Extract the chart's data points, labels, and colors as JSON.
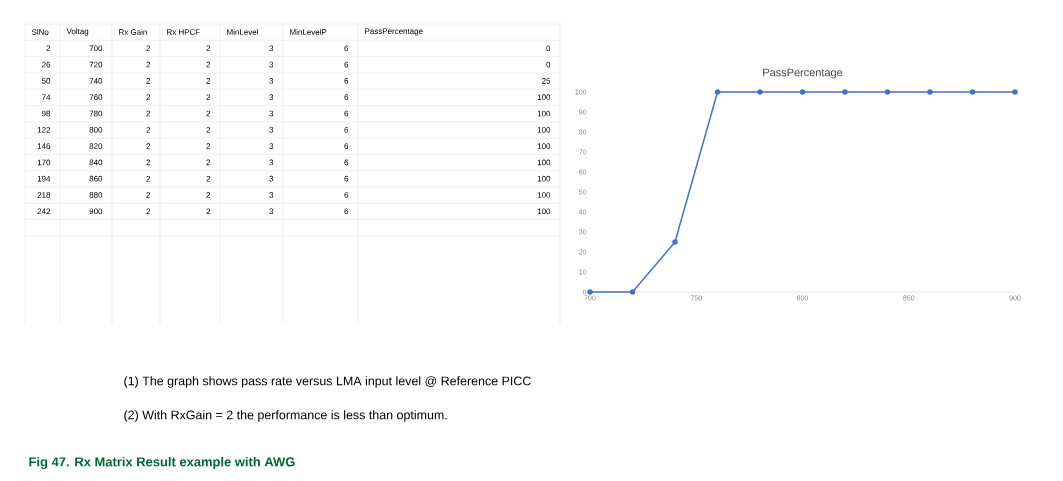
{
  "chart_data": {
    "type": "line",
    "title": "PassPercentage",
    "x": [
      700,
      720,
      740,
      760,
      780,
      800,
      820,
      840,
      860,
      880,
      900
    ],
    "values": [
      0,
      0,
      25,
      100,
      100,
      100,
      100,
      100,
      100,
      100,
      100
    ],
    "color": "#4472c4",
    "marker": "circle",
    "grid": false,
    "xlim": [
      700,
      900
    ],
    "xticks": [
      700,
      750,
      800,
      850,
      900
    ],
    "ylim": [
      0,
      100
    ],
    "yticks": [
      0,
      10,
      20,
      30,
      40,
      50,
      60,
      70,
      80,
      90,
      100
    ],
    "annotations": [
      "SlNo",
      "Voltag",
      "Rx Gain",
      "Rx HPCF",
      "MinLevel",
      "MinLevelP",
      "PassPercentage",
      "2",
      "700",
      "2",
      "2",
      "3",
      "6",
      "0",
      "26",
      "720",
      "2",
      "2",
      "3",
      "6",
      "0",
      "50",
      "740",
      "2",
      "2",
      "3",
      "6",
      "25",
      "74",
      "760",
      "2",
      "2",
      "3",
      "6",
      "100",
      "98",
      "780",
      "2",
      "2",
      "3",
      "6",
      "100",
      "122",
      "800",
      "2",
      "2",
      "3",
      "6",
      "100",
      "146",
      "820",
      "2",
      "2",
      "3",
      "6",
      "100",
      "170",
      "840",
      "2",
      "2",
      "3",
      "6",
      "100",
      "194",
      "860",
      "2",
      "2",
      "3",
      "6",
      "100",
      "218",
      "880",
      "2",
      "2",
      "3",
      "6",
      "100",
      "242",
      "900",
      "2",
      "2",
      "3",
      "6",
      "100",
      "(1)   The graph shows pass rate versus LMA input level @ Reference PICC",
      "(2)   With RxGain = 2 the performance is less than optimum.",
      "Fig 47. Rx Matrix Result example with AWG"
    ]
  }
}
